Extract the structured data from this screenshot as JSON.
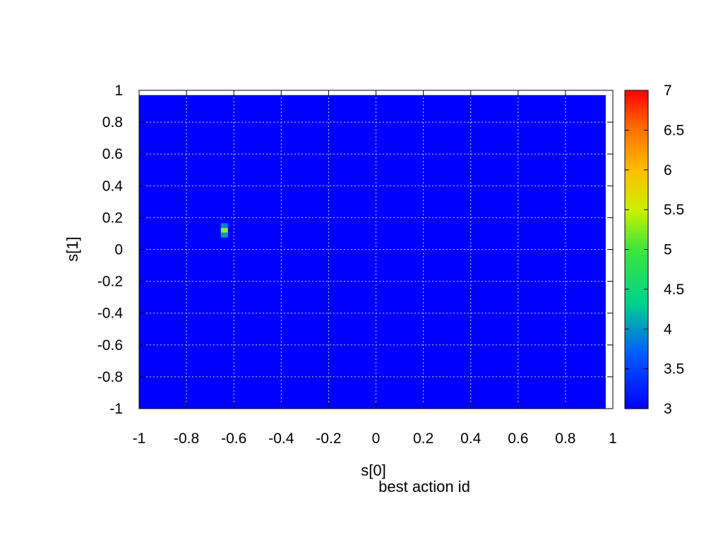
{
  "chart_data": {
    "type": "heatmap",
    "title": "best action id",
    "xlabel": "s[0]",
    "ylabel": "s[1]",
    "xlim": [
      -1,
      1
    ],
    "ylim": [
      -1,
      1
    ],
    "data_extent_x": [
      -1,
      0.97
    ],
    "data_extent_y": [
      -1,
      0.97
    ],
    "cell_size": 0.03,
    "grid": true,
    "xticks": [
      -1,
      -0.8,
      -0.6,
      -0.4,
      -0.2,
      0,
      0.2,
      0.4,
      0.6,
      0.8,
      1
    ],
    "xtick_labels": [
      "-1",
      "-0.8",
      "-0.6",
      "-0.4",
      "-0.2",
      "0",
      "0.2",
      "0.4",
      "0.6",
      "0.8",
      "1"
    ],
    "yticks": [
      -1,
      -0.8,
      -0.6,
      -0.4,
      -0.2,
      0,
      0.2,
      0.4,
      0.6,
      0.8,
      1
    ],
    "ytick_labels": [
      "-1",
      "-0.8",
      "-0.6",
      "-0.4",
      "-0.2",
      "0",
      "0.2",
      "0.4",
      "0.6",
      "0.8",
      "1"
    ],
    "background_value": 3,
    "cells": [
      {
        "x": -0.64,
        "y": 0.15,
        "value": 3.9
      },
      {
        "x": -0.64,
        "y": 0.12,
        "value": 5.3
      },
      {
        "x": -0.64,
        "y": 0.09,
        "value": 4.0
      }
    ],
    "colorbar": {
      "range": [
        3,
        7
      ],
      "ticks": [
        3,
        3.5,
        4,
        4.5,
        5,
        5.5,
        6,
        6.5,
        7
      ],
      "tick_labels": [
        "3",
        "3.5",
        "4",
        "4.5",
        "5",
        "5.5",
        "6",
        "6.5",
        "7"
      ]
    }
  },
  "colors": {
    "grid": "#c8c8c8",
    "frame": "#000000"
  }
}
